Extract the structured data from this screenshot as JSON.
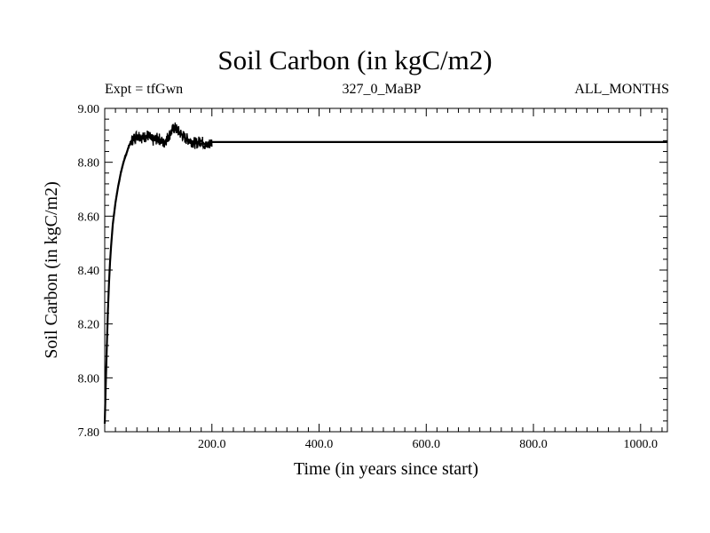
{
  "chart_data": {
    "type": "line",
    "title": "Soil Carbon (in kgC/m2)",
    "subtitle_left": "Expt = tfGwn",
    "subtitle_center": "327_0_MaBP",
    "subtitle_right": "ALL_MONTHS",
    "xlabel": "Time (in years since start)",
    "ylabel": "Soil Carbon (in kgC/m2)",
    "xlim": [
      0,
      1050
    ],
    "ylim": [
      7.8,
      9.0
    ],
    "x_tick_labels": [
      "200.0",
      "400.0",
      "600.0",
      "800.0",
      "1000.0"
    ],
    "x_tick_values": [
      200,
      400,
      600,
      800,
      1000
    ],
    "y_tick_labels": [
      "7.80",
      "8.00",
      "8.20",
      "8.40",
      "8.60",
      "8.80",
      "9.00"
    ],
    "y_tick_values": [
      7.8,
      8.0,
      8.2,
      8.4,
      8.6,
      8.8,
      9.0
    ],
    "series": [
      {
        "name": "Soil Carbon",
        "x": [
          0,
          2,
          4,
          6,
          8,
          10,
          12,
          15,
          20,
          25,
          30,
          35,
          40,
          45,
          50,
          55,
          60,
          65,
          70,
          80,
          90,
          100,
          110,
          120,
          130,
          140,
          150,
          160,
          170,
          180,
          190,
          200,
          1050
        ],
        "y": [
          7.83,
          7.98,
          8.12,
          8.25,
          8.35,
          8.43,
          8.49,
          8.57,
          8.65,
          8.71,
          8.76,
          8.8,
          8.83,
          8.86,
          8.88,
          8.89,
          8.9,
          8.9,
          8.89,
          8.9,
          8.88,
          8.89,
          8.87,
          8.9,
          8.93,
          8.91,
          8.89,
          8.88,
          8.87,
          8.88,
          8.86,
          8.875,
          8.875
        ]
      }
    ]
  }
}
